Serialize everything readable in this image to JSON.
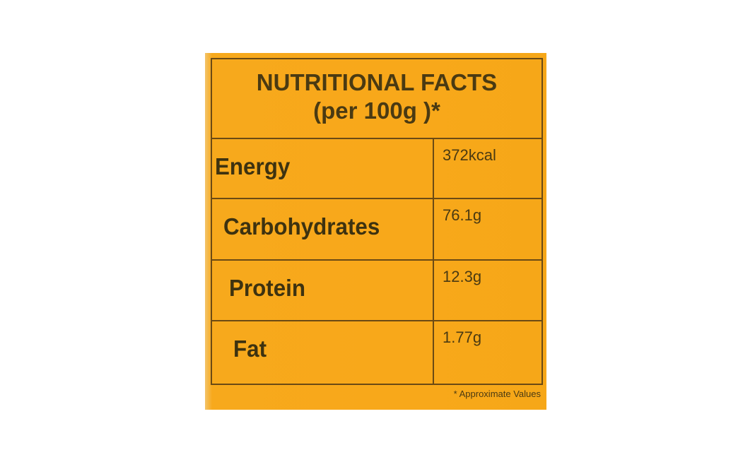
{
  "title": "NUTRITIONAL FACTS",
  "subtitle": "(per 100g )*",
  "table": {
    "rows": [
      [
        "Energy",
        "372kcal"
      ],
      [
        "Carbohydrates",
        "76.1g"
      ],
      [
        "Protein",
        "12.3g"
      ],
      [
        "Fat",
        "1.77g"
      ]
    ]
  },
  "footnote": "* Approximate Values"
}
